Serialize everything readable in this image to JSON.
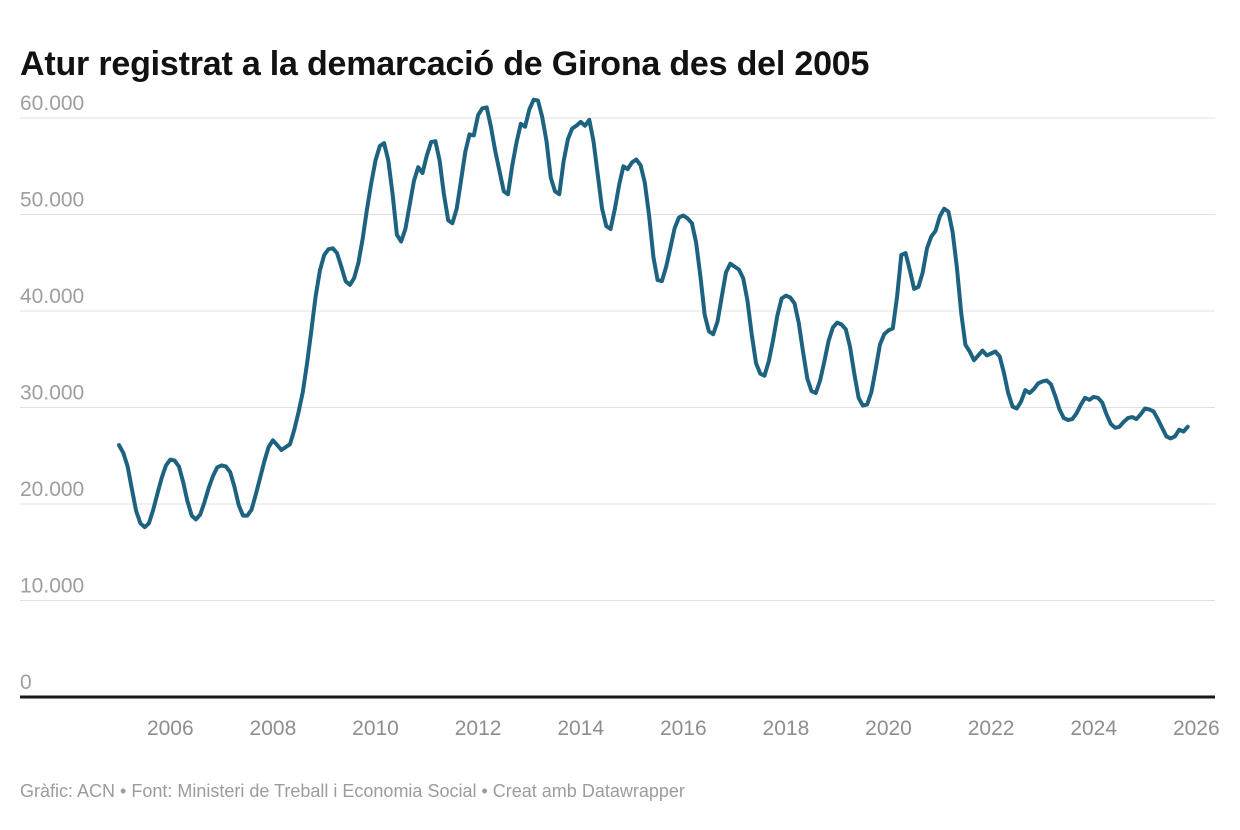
{
  "header": {
    "title": "Atur registrat a la demarcació de Girona des del 2005"
  },
  "footer": {
    "credit": "Gràfic: ACN • Font: Ministeri de Treball i Economia Social",
    "separator": " • ",
    "made_with": "Creat amb Datawrapper"
  },
  "colors": {
    "line": "#1d6380",
    "grid": "#e0e0e0",
    "axis": "#1a1a1a",
    "y_tick_label": "#9e9e9e",
    "x_tick_label": "#8e8e8e",
    "title": "#121212",
    "footer": "#9c9c9c"
  },
  "chart_data": {
    "type": "line",
    "title": "Atur registrat a la demarcació de Girona des del 2005",
    "xlabel": "",
    "ylabel": "",
    "grid": true,
    "legend": "none",
    "ylim": [
      0,
      62000
    ],
    "x_start_year": 2005,
    "x_frequency": "monthly",
    "x_last_point": "novembre 2025",
    "y_ticks": [
      {
        "value": 0,
        "label": "0"
      },
      {
        "value": 10000,
        "label": "10.000"
      },
      {
        "value": 20000,
        "label": "20.000"
      },
      {
        "value": 30000,
        "label": "30.000"
      },
      {
        "value": 40000,
        "label": "40.000"
      },
      {
        "value": 50000,
        "label": "50.000"
      },
      {
        "value": 60000,
        "label": "60.000"
      }
    ],
    "x_ticks": [
      2006,
      2008,
      2010,
      2012,
      2014,
      2016,
      2018,
      2020,
      2022,
      2024,
      2026
    ],
    "series": [
      {
        "name": "Atur registrat a la demarcació de Girona",
        "color": "#1d6380",
        "values": [
          26100,
          25300,
          23900,
          21600,
          19300,
          18000,
          17600,
          18000,
          19400,
          21100,
          22700,
          24000,
          24600,
          24500,
          23900,
          22300,
          20300,
          18800,
          18400,
          18900,
          20200,
          21700,
          22900,
          23800,
          24000,
          23900,
          23300,
          21800,
          19900,
          18800,
          18800,
          19400,
          21000,
          22700,
          24400,
          25900,
          26600,
          26100,
          25600,
          25900,
          26200,
          27700,
          29500,
          31600,
          34600,
          38000,
          41500,
          44200,
          45800,
          46400,
          46500,
          46000,
          44600,
          43100,
          42700,
          43400,
          45000,
          47500,
          50500,
          53200,
          55600,
          57100,
          57400,
          55600,
          52100,
          47900,
          47200,
          48500,
          51000,
          53500,
          54900,
          54300,
          56100,
          57500,
          57600,
          55600,
          52100,
          49400,
          49100,
          50600,
          53500,
          56500,
          58300,
          58200,
          60300,
          61000,
          61100,
          59100,
          56600,
          54500,
          52400,
          52100,
          55100,
          57500,
          59400,
          59100,
          60900,
          61900,
          61800,
          60100,
          57600,
          53800,
          52400,
          52100,
          55500,
          57800,
          58900,
          59200,
          59600,
          59200,
          59800,
          57600,
          54100,
          50600,
          48800,
          48500,
          50600,
          53100,
          55000,
          54700,
          55400,
          55700,
          55100,
          53300,
          49900,
          45600,
          43200,
          43100,
          44600,
          46600,
          48600,
          49700,
          49900,
          49600,
          49100,
          47100,
          43600,
          39600,
          37900,
          37600,
          38900,
          41500,
          44000,
          44900,
          44600,
          44300,
          43400,
          41100,
          37600,
          34600,
          33500,
          33300,
          34800,
          37000,
          39500,
          41300,
          41600,
          41400,
          40800,
          38800,
          35800,
          33000,
          31700,
          31500,
          32800,
          34800,
          36900,
          38300,
          38800,
          38600,
          38100,
          36300,
          33500,
          31000,
          30200,
          30300,
          31600,
          34000,
          36500,
          37600,
          38000,
          38200,
          41500,
          45800,
          46000,
          44200,
          42300,
          42500,
          44000,
          46500,
          47700,
          48300,
          49800,
          50600,
          50300,
          48200,
          44500,
          39800,
          36500,
          35800,
          34900,
          35400,
          35900,
          35400,
          35600,
          35800,
          35300,
          33600,
          31500,
          30100,
          29900,
          30600,
          31800,
          31500,
          31900,
          32500,
          32700,
          32800,
          32400,
          31200,
          29800,
          28900,
          28700,
          28800,
          29400,
          30300,
          31000,
          30800,
          31100,
          31000,
          30500,
          29300,
          28300,
          27900,
          28000,
          28500,
          28900,
          29000,
          28800,
          29300,
          29900,
          29800,
          29600,
          28800,
          27900,
          27000,
          26800,
          27000,
          27700,
          27500,
          28000
        ]
      }
    ]
  }
}
